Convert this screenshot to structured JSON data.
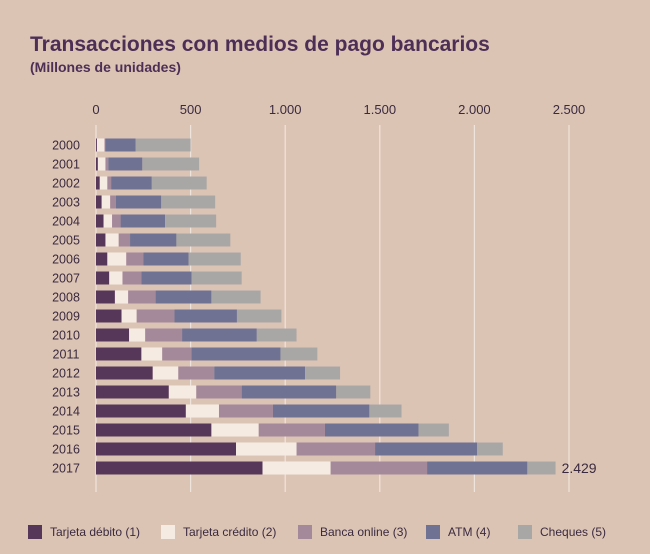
{
  "chart_data": {
    "type": "bar",
    "orientation": "horizontal",
    "stacked": true,
    "title": "Transacciones con medios de pago bancarios",
    "subtitle": "(Millones de unidades)",
    "xlim": [
      0,
      2500
    ],
    "x_ticks": [
      0,
      500,
      1000,
      1500,
      2000,
      2500
    ],
    "x_tick_labels": [
      "0",
      "500",
      "1.000",
      "1.500",
      "2.000",
      "2.500"
    ],
    "grid": true,
    "legend_position": "bottom",
    "categories": [
      "2000",
      "2001",
      "2002",
      "2003",
      "2004",
      "2005",
      "2006",
      "2007",
      "2008",
      "2009",
      "2010",
      "2011",
      "2012",
      "2013",
      "2014",
      "2015",
      "2016",
      "2017"
    ],
    "series": [
      {
        "name": "Tarjeta débito (1)",
        "color": "#563759",
        "values": [
          5,
          10,
          20,
          30,
          40,
          50,
          60,
          70,
          100,
          135,
          175,
          240,
          300,
          385,
          475,
          610,
          740,
          880
        ]
      },
      {
        "name": "Tarjeta crédito (2)",
        "color": "#f6ebe2",
        "values": [
          40,
          40,
          40,
          45,
          45,
          70,
          100,
          70,
          70,
          80,
          85,
          110,
          135,
          145,
          175,
          250,
          320,
          360
        ]
      },
      {
        "name": "Banca online (3)",
        "color": "#a4899a",
        "values": [
          5,
          15,
          20,
          30,
          45,
          60,
          90,
          100,
          145,
          200,
          195,
          155,
          190,
          240,
          285,
          350,
          415,
          510
        ]
      },
      {
        "name": "ATM (4)",
        "color": "#6f7293",
        "values": [
          160,
          180,
          215,
          240,
          235,
          245,
          240,
          265,
          295,
          330,
          395,
          470,
          480,
          500,
          510,
          495,
          540,
          530
        ]
      },
      {
        "name": "Cheques (5)",
        "color": "#a9a7a6",
        "values": [
          290,
          300,
          290,
          285,
          270,
          285,
          275,
          265,
          260,
          235,
          210,
          195,
          185,
          180,
          170,
          160,
          135,
          149
        ]
      }
    ],
    "annotation": {
      "category": "2017",
      "text": "2.429"
    }
  }
}
